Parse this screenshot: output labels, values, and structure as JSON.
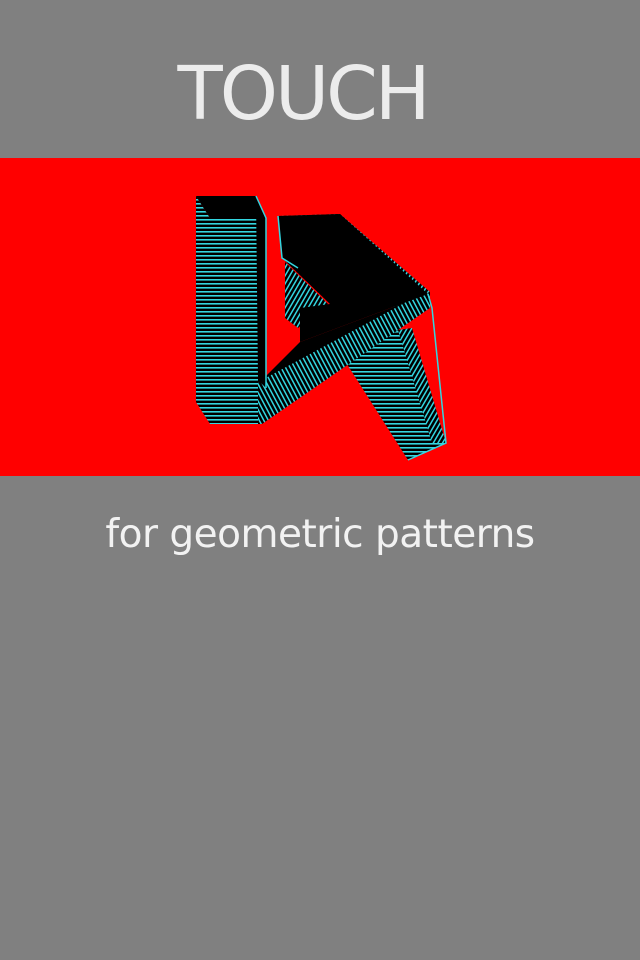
{
  "screen": {
    "title": "TOUCH",
    "subtitle": "for geometric patterns"
  },
  "colors": {
    "background": "#808080",
    "banner": "#ff0000",
    "shape_fill": "#000000",
    "shape_stripes": "#33d6e0",
    "text": "#ececec"
  },
  "banner": {
    "artwork": "striped-3d-geometric-shape"
  }
}
